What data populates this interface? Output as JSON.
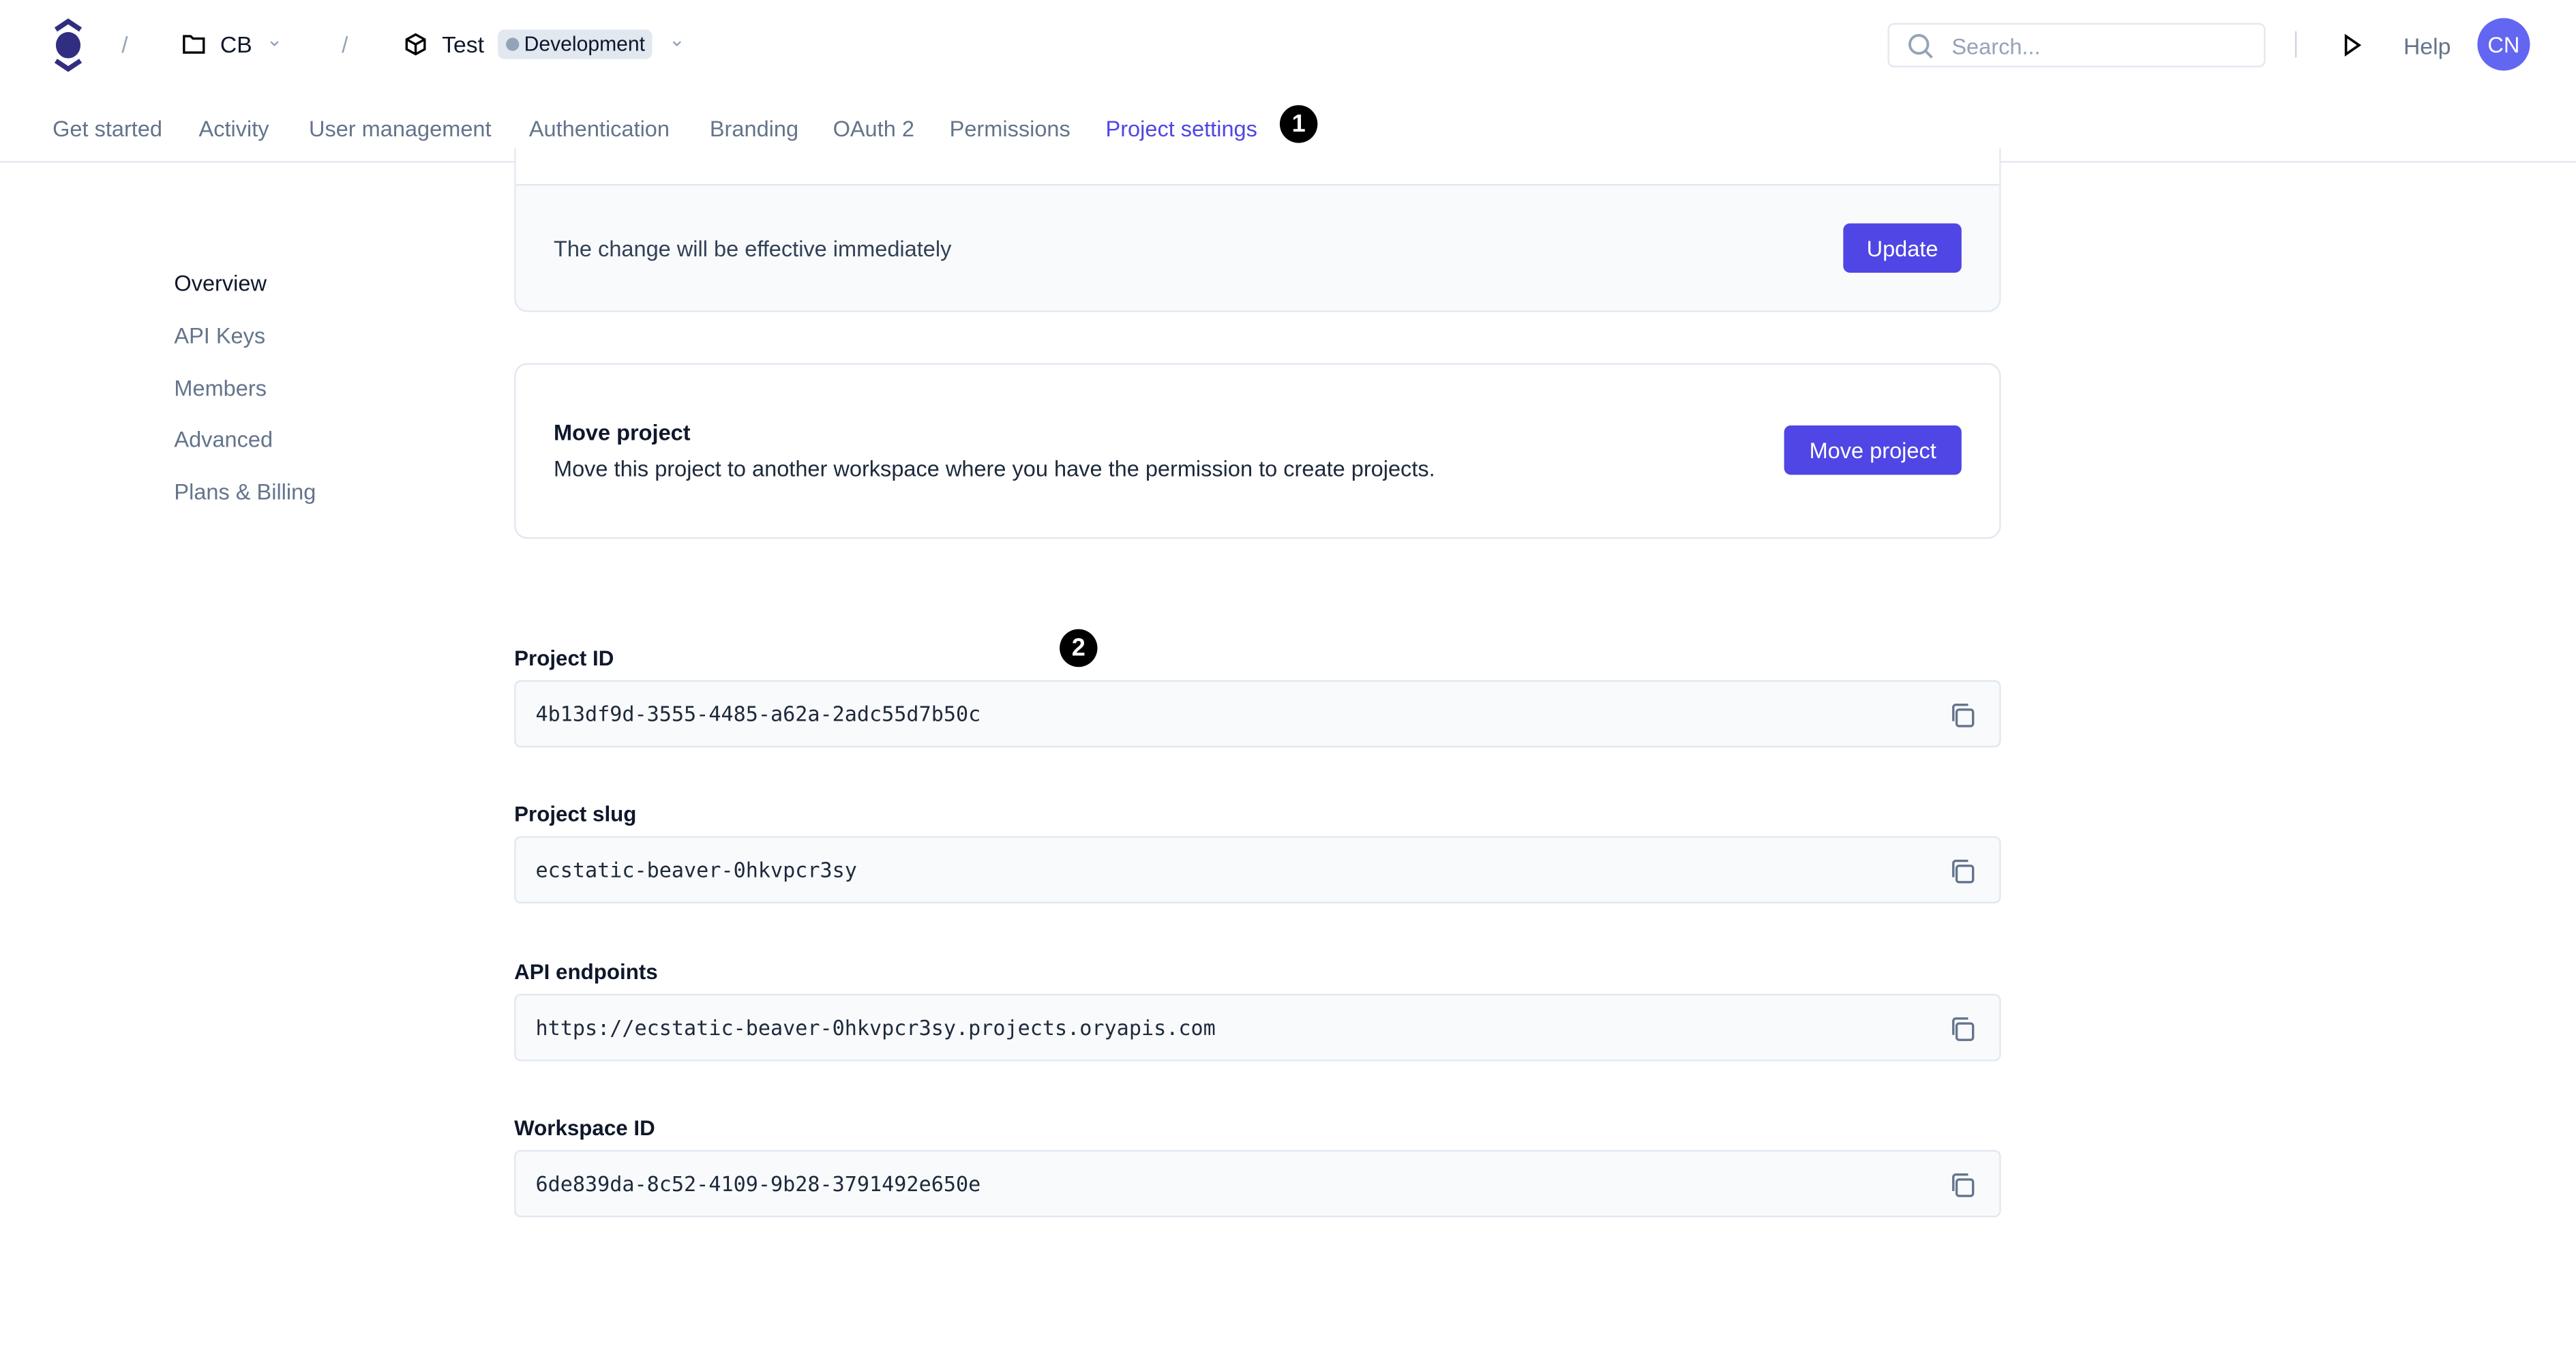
{
  "header": {
    "breadcrumb": {
      "workspace": "CB",
      "project": "Test",
      "environment": "Development"
    },
    "search": {
      "placeholder": "Search..."
    },
    "help_label": "Help",
    "avatar_initials": "CN"
  },
  "tabs": [
    {
      "label": "Get started"
    },
    {
      "label": "Activity"
    },
    {
      "label": "User management"
    },
    {
      "label": "Authentication"
    },
    {
      "label": "Branding"
    },
    {
      "label": "OAuth 2"
    },
    {
      "label": "Permissions"
    },
    {
      "label": "Project settings",
      "active": true
    }
  ],
  "sidebar": {
    "items": [
      {
        "label": "Overview",
        "active": true
      },
      {
        "label": "API Keys"
      },
      {
        "label": "Members"
      },
      {
        "label": "Advanced"
      },
      {
        "label": "Plans & Billing"
      }
    ]
  },
  "update_card": {
    "text": "The change will be effective immediately",
    "button": "Update"
  },
  "move_card": {
    "title": "Move project",
    "description": "Move this project to another workspace where you have the permission to create projects.",
    "button": "Move project"
  },
  "fields": [
    {
      "label": "Project ID",
      "value": "4b13df9d-3555-4485-a62a-2adc55d7b50c"
    },
    {
      "label": "Project slug",
      "value": "ecstatic-beaver-0hkvpcr3sy"
    },
    {
      "label": "API endpoints",
      "value": "https://ecstatic-beaver-0hkvpcr3sy.projects.oryapis.com"
    },
    {
      "label": "Workspace ID",
      "value": "6de839da-8c52-4109-9b28-3791492e650e"
    }
  ],
  "annotations": [
    "1",
    "2"
  ],
  "colors": {
    "accent": "#4f46e5",
    "avatar": "#6366f1",
    "logo": "#312e81"
  }
}
